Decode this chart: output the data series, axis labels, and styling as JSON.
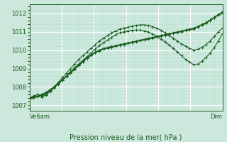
{
  "title": "Pression niveau de la mer( hPa )",
  "ylim": [
    1006.7,
    1012.5
  ],
  "yticks": [
    1007,
    1008,
    1009,
    1010,
    1011,
    1012
  ],
  "xlabel_left": "Ve6am",
  "xlabel_right": "Dim",
  "bg_color": "#cce8dc",
  "grid_color_major": "#ffffff",
  "grid_color_minor": "#b8ddd0",
  "line_color": "#1a5e20",
  "n_points": 48,
  "series": [
    [
      1007.4,
      1007.45,
      1007.5,
      1007.6,
      1007.7,
      1007.85,
      1008.0,
      1008.2,
      1008.4,
      1008.6,
      1008.8,
      1009.0,
      1009.2,
      1009.4,
      1009.6,
      1009.75,
      1009.9,
      1010.0,
      1010.1,
      1010.15,
      1010.2,
      1010.25,
      1010.3,
      1010.35,
      1010.4,
      1010.45,
      1010.5,
      1010.55,
      1010.6,
      1010.65,
      1010.7,
      1010.75,
      1010.8,
      1010.85,
      1010.9,
      1010.95,
      1011.0,
      1011.05,
      1011.1,
      1011.15,
      1011.2,
      1011.3,
      1011.4,
      1011.5,
      1011.65,
      1011.8,
      1011.95,
      1012.05
    ],
    [
      1007.38,
      1007.43,
      1007.48,
      1007.58,
      1007.68,
      1007.83,
      1007.98,
      1008.18,
      1008.38,
      1008.58,
      1008.78,
      1008.98,
      1009.18,
      1009.38,
      1009.58,
      1009.73,
      1009.88,
      1009.98,
      1010.08,
      1010.13,
      1010.18,
      1010.23,
      1010.28,
      1010.33,
      1010.38,
      1010.43,
      1010.48,
      1010.53,
      1010.58,
      1010.63,
      1010.68,
      1010.73,
      1010.78,
      1010.83,
      1010.88,
      1010.93,
      1010.98,
      1011.03,
      1011.08,
      1011.13,
      1011.18,
      1011.28,
      1011.38,
      1011.48,
      1011.63,
      1011.78,
      1011.93,
      1012.0
    ],
    [
      1007.36,
      1007.41,
      1007.46,
      1007.56,
      1007.66,
      1007.81,
      1007.96,
      1008.16,
      1008.36,
      1008.56,
      1008.76,
      1008.96,
      1009.16,
      1009.36,
      1009.56,
      1009.71,
      1009.86,
      1009.96,
      1010.06,
      1010.11,
      1010.16,
      1010.21,
      1010.26,
      1010.31,
      1010.36,
      1010.41,
      1010.46,
      1010.51,
      1010.56,
      1010.61,
      1010.66,
      1010.71,
      1010.76,
      1010.81,
      1010.86,
      1010.91,
      1010.96,
      1011.01,
      1011.06,
      1011.11,
      1011.16,
      1011.26,
      1011.36,
      1011.46,
      1011.61,
      1011.76,
      1011.91,
      1012.1
    ],
    [
      1007.4,
      1007.5,
      1007.6,
      1007.5,
      1007.6,
      1007.8,
      1008.0,
      1008.25,
      1008.5,
      1008.75,
      1009.0,
      1009.25,
      1009.5,
      1009.7,
      1009.9,
      1010.1,
      1010.3,
      1010.5,
      1010.65,
      1010.8,
      1010.95,
      1011.05,
      1011.15,
      1011.2,
      1011.25,
      1011.3,
      1011.35,
      1011.38,
      1011.38,
      1011.35,
      1011.28,
      1011.2,
      1011.08,
      1010.95,
      1010.8,
      1010.65,
      1010.5,
      1010.35,
      1010.22,
      1010.1,
      1010.0,
      1010.05,
      1010.15,
      1010.3,
      1010.5,
      1010.75,
      1011.0,
      1011.2
    ],
    [
      1007.38,
      1007.48,
      1007.58,
      1007.45,
      1007.55,
      1007.75,
      1007.95,
      1008.15,
      1008.38,
      1008.6,
      1008.82,
      1009.05,
      1009.25,
      1009.45,
      1009.65,
      1009.85,
      1010.05,
      1010.25,
      1010.4,
      1010.55,
      1010.7,
      1010.85,
      1010.95,
      1011.0,
      1011.05,
      1011.08,
      1011.1,
      1011.1,
      1011.05,
      1010.98,
      1010.88,
      1010.75,
      1010.6,
      1010.45,
      1010.28,
      1010.1,
      1009.9,
      1009.7,
      1009.5,
      1009.35,
      1009.2,
      1009.25,
      1009.4,
      1009.6,
      1009.85,
      1010.15,
      1010.5,
      1010.9
    ]
  ]
}
